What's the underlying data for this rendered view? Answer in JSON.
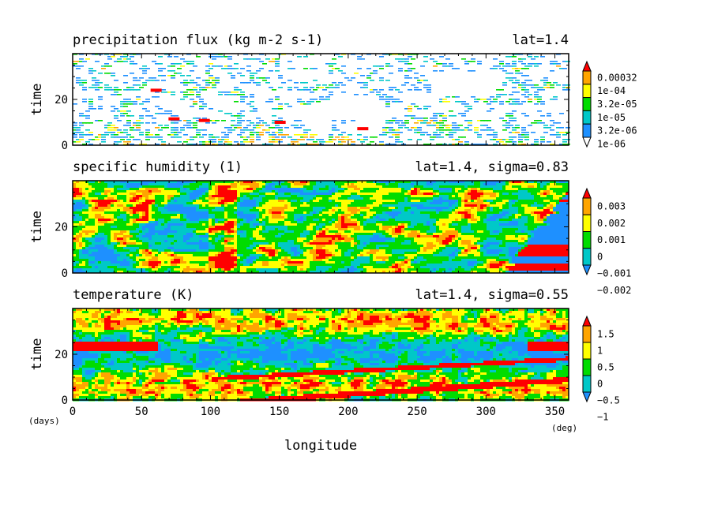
{
  "chart_data": [
    {
      "type": "heatmap",
      "title": "precipitation flux (kg m-2 s-1)",
      "subtitle": "lat=1.4",
      "ylabel": "time",
      "xlim": [
        0,
        360
      ],
      "ylim": [
        0,
        40
      ],
      "yticks": [
        0,
        20
      ],
      "colorbar": {
        "labels": [
          "0.00032",
          "1e-04",
          "3.2e-05",
          "1e-05",
          "3.2e-06",
          "1e-06"
        ],
        "colors": [
          "#ffffff",
          "#1e90ff",
          "#00c8c8",
          "#00dc00",
          "#ffff00",
          "#ffa500",
          "#ff0000"
        ]
      }
    },
    {
      "type": "heatmap",
      "title": "specific humidity (1)",
      "subtitle": "lat=1.4, sigma=0.83",
      "ylabel": "time",
      "xlim": [
        0,
        360
      ],
      "ylim": [
        0,
        40
      ],
      "yticks": [
        0,
        20
      ],
      "colorbar": {
        "labels": [
          "0.003",
          "0.002",
          "0.001",
          "0",
          "−0.001",
          "−0.002"
        ],
        "colors": [
          "#1e90ff",
          "#00c8c8",
          "#00dc00",
          "#ffff00",
          "#ffa500",
          "#ff0000"
        ]
      }
    },
    {
      "type": "heatmap",
      "title": "temperature (K)",
      "subtitle": "lat=1.4, sigma=0.55",
      "ylabel": "time",
      "xlabel": "longitude",
      "xlim": [
        0,
        360
      ],
      "ylim": [
        0,
        40
      ],
      "xticks": [
        0,
        50,
        100,
        150,
        200,
        250,
        300,
        350
      ],
      "yticks": [
        0,
        20
      ],
      "x_unit": "(deg)",
      "y_unit": "(days)",
      "colorbar": {
        "labels": [
          "1.5",
          "1",
          "0.5",
          "0",
          "−0.5",
          "−1"
        ],
        "colors": [
          "#1e90ff",
          "#00c8c8",
          "#00dc00",
          "#ffff00",
          "#ffa500",
          "#ff0000"
        ]
      }
    }
  ]
}
